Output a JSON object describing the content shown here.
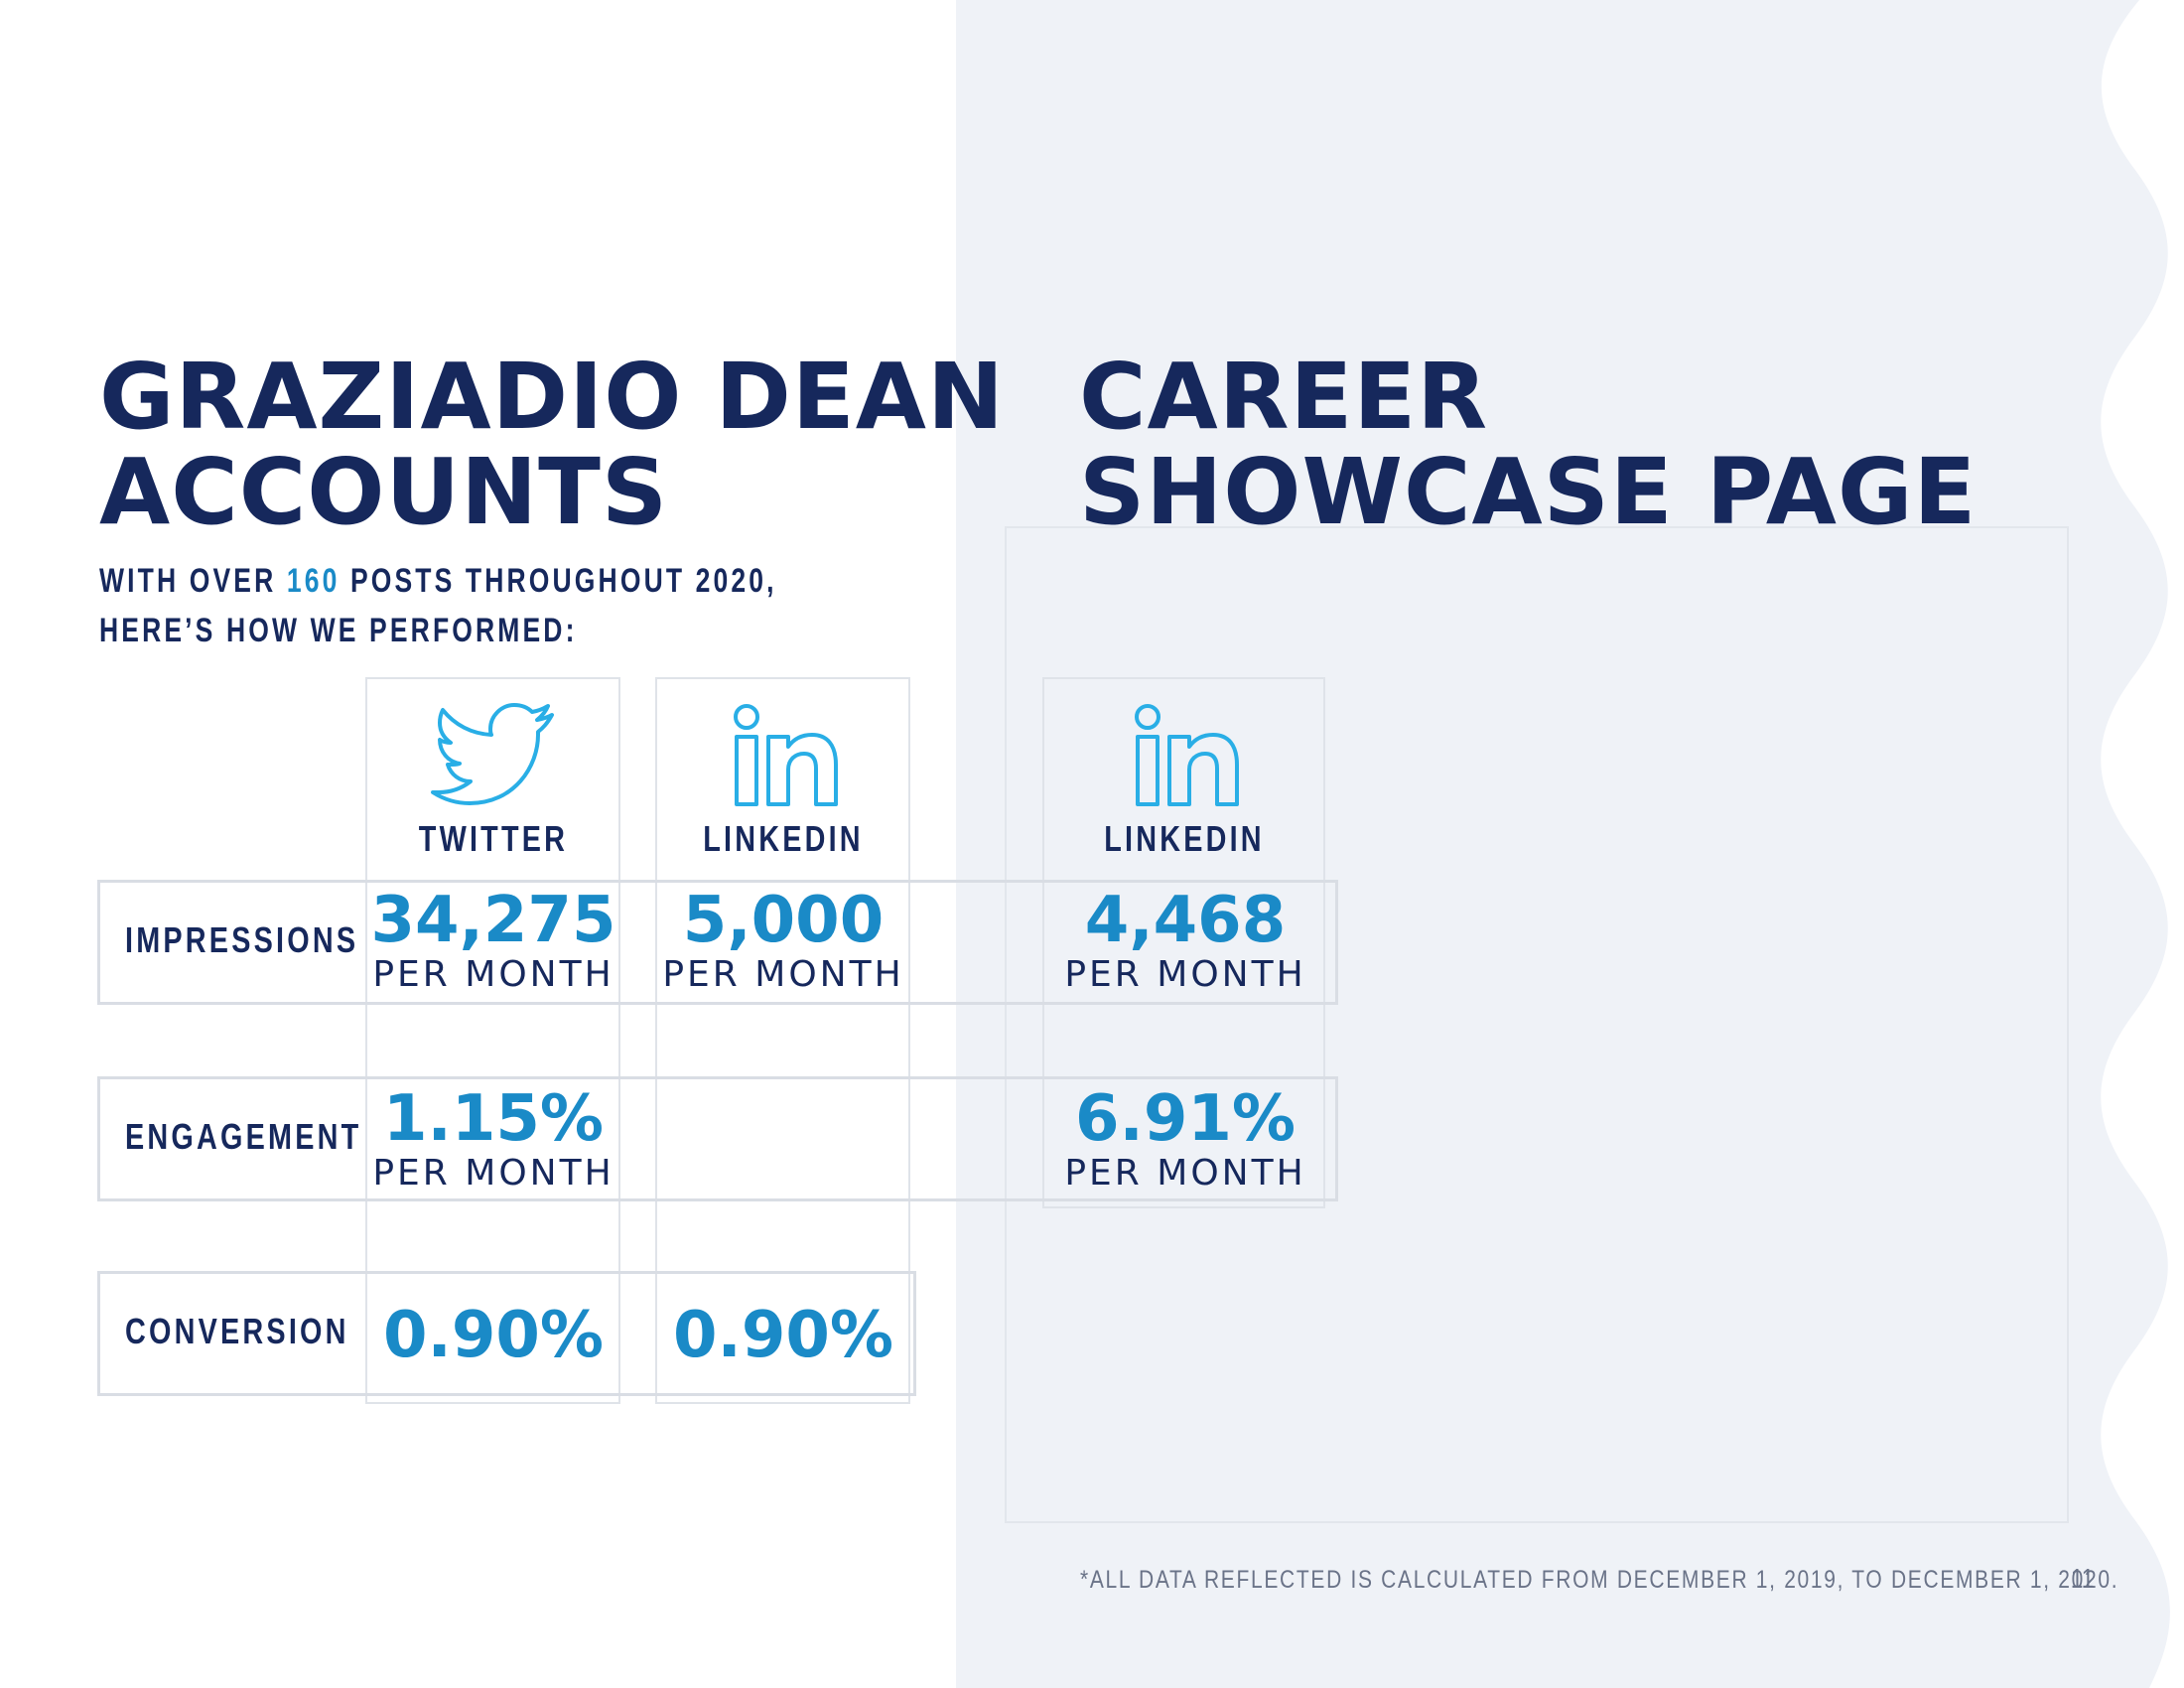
{
  "left_section": {
    "title_line1": "GRAZIADIO DEAN",
    "title_line2": "ACCOUNTS",
    "subtitle_pre": "WITH OVER ",
    "subtitle_highlight": "160",
    "subtitle_post": " POSTS THROUGHOUT 2020, HERE’S HOW WE PERFORMED:"
  },
  "right_section": {
    "title_line1": "CAREER",
    "title_line2": "SHOWCASE PAGE"
  },
  "columns": {
    "twitter": {
      "label": "TWITTER",
      "icon": "twitter-bird-icon"
    },
    "linkedin": {
      "label": "LINKEDIN",
      "icon": "linkedin-icon"
    },
    "career_linkedin": {
      "label": "LINKEDIN",
      "icon": "linkedin-icon"
    }
  },
  "rows": {
    "impressions": {
      "label": "IMPRESSIONS",
      "twitter": {
        "value": "34,275",
        "unit": "PER MONTH"
      },
      "linkedin": {
        "value": "5,000",
        "unit": "PER MONTH"
      },
      "career_linkedin": {
        "value": "4,468",
        "unit": "PER MONTH"
      }
    },
    "engagement": {
      "label": "ENGAGEMENT",
      "twitter": {
        "value": "1.15%",
        "unit": "PER MONTH"
      },
      "career_linkedin": {
        "value": "6.91%",
        "unit": "PER MONTH"
      }
    },
    "conversion": {
      "label": "CONVERSION",
      "twitter": {
        "value": "0.90%"
      },
      "linkedin": {
        "value": "0.90%"
      }
    }
  },
  "footnote": "*ALL DATA REFLECTED IS CALCULATED FROM DECEMBER 1, 2019, TO DECEMBER 1, 2020.",
  "page_number": "11",
  "colors": {
    "navy": "#16285c",
    "accent_blue": "#1a8ac7",
    "icon_cyan": "#29aee6",
    "panel_bg": "#eff2f7"
  }
}
